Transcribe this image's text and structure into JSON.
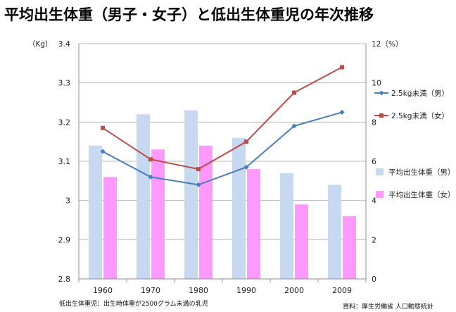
{
  "chart_data": {
    "type": "bar",
    "title": "平均出生体重（男子・女子）と低出生体重児の年次推移",
    "categories": [
      "1960",
      "1970",
      "1980",
      "1990",
      "2000",
      "2009"
    ],
    "y_left": {
      "label": "（Kg）",
      "range": [
        2.8,
        3.4
      ],
      "ticks": [
        "2.8",
        "2.9",
        "3",
        "3.1",
        "3.2",
        "3.3",
        "3.4"
      ]
    },
    "y_right": {
      "label": "12（%）",
      "range": [
        0,
        12
      ],
      "ticks": [
        "0",
        "2",
        "4",
        "6",
        "8",
        "10"
      ]
    },
    "bar_series": [
      {
        "name": "平均出生体重（男）",
        "color": "#c6d9f0",
        "values": [
          3.14,
          3.22,
          3.23,
          3.16,
          3.07,
          3.04
        ]
      },
      {
        "name": "平均出生体重（女）",
        "color": "#ff99ff",
        "values": [
          3.06,
          3.13,
          3.14,
          3.08,
          2.99,
          2.96
        ]
      }
    ],
    "line_series": [
      {
        "name": "2.5kg未満（男）",
        "color": "#4a7ebb",
        "marker": "diamond",
        "values": [
          6.5,
          5.2,
          4.8,
          5.7,
          7.8,
          8.5
        ]
      },
      {
        "name": "2.5kg未満（女）",
        "color": "#be4b48",
        "marker": "square",
        "values": [
          7.7,
          6.1,
          5.6,
          7.0,
          9.5,
          10.8
        ]
      }
    ],
    "grid": true,
    "legend_position": "right"
  },
  "footnote": "低出生体重児：出生時体重が2500グラム未満の乳児",
  "source": "資料：厚生労働省 人口動態統計"
}
